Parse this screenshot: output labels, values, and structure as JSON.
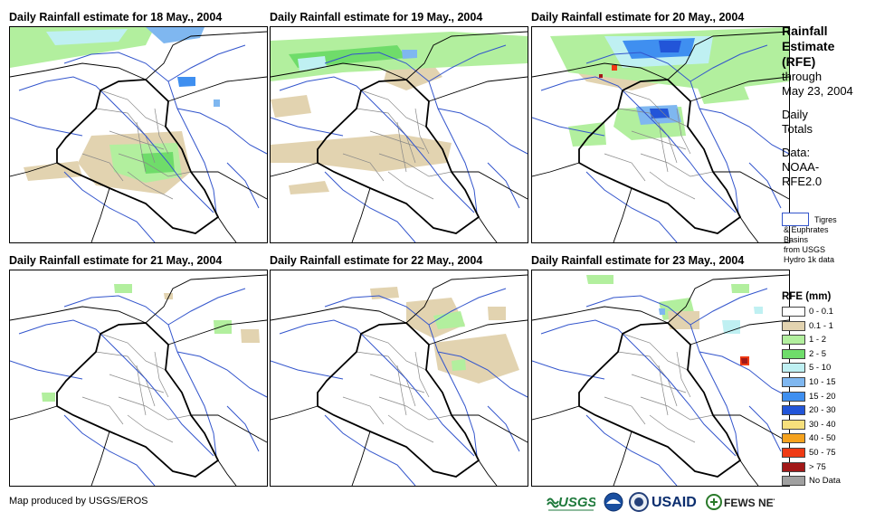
{
  "panels": [
    {
      "title": "Daily Rainfall estimate for 18 May., 2004",
      "day": 18
    },
    {
      "title": "Daily Rainfall estimate for 19 May., 2004",
      "day": 19
    },
    {
      "title": "Daily Rainfall estimate for 20 May., 2004",
      "day": 20
    },
    {
      "title": "Daily Rainfall estimate for 21 May., 2004",
      "day": 21
    },
    {
      "title": "Daily Rainfall estimate for 22 May., 2004",
      "day": 22
    },
    {
      "title": "Daily Rainfall estimate for 23 May., 2004",
      "day": 23
    }
  ],
  "legend": {
    "title_line1": "Rainfall",
    "title_line2": "Estimate",
    "title_line3": "(RFE)",
    "through": "through",
    "date": "May 23, 2004",
    "daily": "Daily",
    "totals": "Totals",
    "data_label": "Data:",
    "data_source1": "NOAA-",
    "data_source2": "RFE2.0",
    "basin_line1": "Tigres",
    "basin_line2": "& Euphrates",
    "basin_line3": "Basins",
    "basin_line4": "from USGS",
    "basin_line5": "Hydro 1k data",
    "rfe_title": "RFE (mm)",
    "rfe_classes": [
      {
        "label": "0 - 0.1",
        "color": "#ffffff"
      },
      {
        "label": "0.1 - 1",
        "color": "#e2d3b0"
      },
      {
        "label": "1 - 2",
        "color": "#b2ef9e"
      },
      {
        "label": "2 - 5",
        "color": "#6fdc6a"
      },
      {
        "label": "5 - 10",
        "color": "#bff0f2"
      },
      {
        "label": "10 - 15",
        "color": "#7fb7f0"
      },
      {
        "label": "15 - 20",
        "color": "#3f8ff0"
      },
      {
        "label": "20 - 30",
        "color": "#2255d8"
      },
      {
        "label": "30 - 40",
        "color": "#f7e07c"
      },
      {
        "label": "40 - 50",
        "color": "#f5a21e"
      },
      {
        "label": "50 - 75",
        "color": "#ef3a14"
      },
      {
        "label": "> 75",
        "color": "#a21818"
      },
      {
        "label": "No Data",
        "color": "#a0a0a0"
      }
    ]
  },
  "footer": {
    "credit": "Map produced by USGS/EROS",
    "logo_usgs": "USGS",
    "logo_usaid": "USAID",
    "logo_fews": "FEWS NET"
  },
  "colors": {
    "border": "#000000",
    "rivers": "#3355cc",
    "admin": "#888888"
  }
}
